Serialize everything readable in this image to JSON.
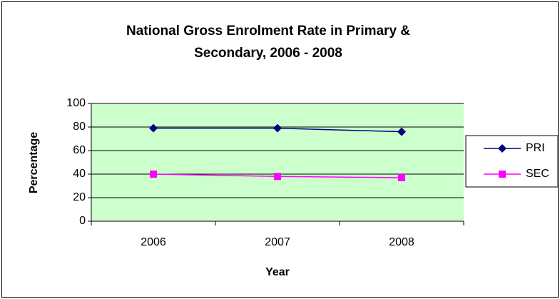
{
  "chart_data": {
    "type": "line",
    "title": "National Gross Enrolment Rate in Primary & Secondary, 2006 - 2008",
    "x_label": "Year",
    "y_label": "Percentage",
    "categories": [
      "2006",
      "2007",
      "2008"
    ],
    "series": [
      {
        "name": "PRI",
        "color": "#000080",
        "marker": "diamond",
        "values": [
          79,
          79,
          76
        ]
      },
      {
        "name": "SEC",
        "color": "#ff00ff",
        "marker": "square",
        "values": [
          40,
          38,
          37
        ]
      }
    ],
    "ylim": [
      0,
      100
    ],
    "yticks": [
      0,
      20,
      40,
      60,
      80,
      100
    ],
    "grid": true,
    "legend": "right",
    "plot_background": "#ccffcc"
  }
}
